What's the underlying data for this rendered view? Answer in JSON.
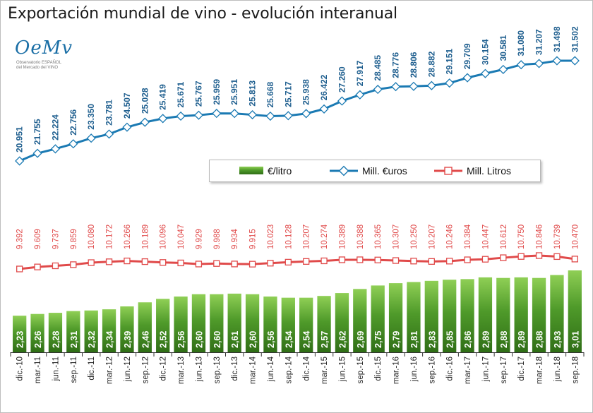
{
  "title": "Exportación mundial de vino - evolución interanual",
  "logo": {
    "mark": "OeMv",
    "line1": "Observatorio ESPAÑOL",
    "line2": "del Mercado del VINO"
  },
  "chart_data": {
    "type": "bar+line",
    "title": "Exportación mundial de vino - evolución interanual",
    "categories": [
      "dic.-10",
      "mar.-11",
      "jun.-11",
      "sep.-11",
      "dic.-11",
      "mar.-12",
      "jun.-12",
      "sep.-12",
      "dic.-12",
      "mar.-13",
      "jun.-13",
      "sep.-13",
      "dic.-13",
      "mar.-14",
      "jun.-14",
      "sep.-14",
      "dic.-14",
      "mar.-15",
      "jun.-15",
      "sep.-15",
      "dic.-15",
      "mar.-16",
      "jun.-16",
      "sep.-16",
      "dic.-16",
      "mar.-17",
      "jun.-17",
      "sep.-17",
      "dic.-17",
      "mar.-18",
      "jun.-18",
      "sep.-18"
    ],
    "series": [
      {
        "name": "€/litro",
        "type": "bar",
        "color": "#4f9a2a",
        "values": [
          2.23,
          2.26,
          2.28,
          2.31,
          2.32,
          2.34,
          2.39,
          2.46,
          2.52,
          2.56,
          2.6,
          2.6,
          2.61,
          2.6,
          2.56,
          2.54,
          2.54,
          2.57,
          2.62,
          2.69,
          2.75,
          2.79,
          2.81,
          2.83,
          2.85,
          2.86,
          2.89,
          2.88,
          2.89,
          2.88,
          2.93,
          3.01
        ],
        "labels": [
          "2,23",
          "2,26",
          "2,28",
          "2,31",
          "2,32",
          "2,34",
          "2,39",
          "2,46",
          "2,52",
          "2,56",
          "2,60",
          "2,60",
          "2,61",
          "2,60",
          "2,56",
          "2,54",
          "2,54",
          "2,57",
          "2,62",
          "2,69",
          "2,75",
          "2,79",
          "2,81",
          "2,83",
          "2,85",
          "2,86",
          "2,89",
          "2,88",
          "2,89",
          "2,88",
          "2,93",
          "3,01"
        ]
      },
      {
        "name": "Mill. €uros",
        "type": "line",
        "color": "#1b7ab3",
        "values": [
          20951,
          21755,
          22224,
          22756,
          23350,
          23781,
          24507,
          25028,
          25419,
          25671,
          25767,
          25959,
          25951,
          25813,
          25668,
          25717,
          25938,
          26422,
          27260,
          27917,
          28485,
          28776,
          28806,
          28882,
          29151,
          29709,
          30154,
          30581,
          31080,
          31207,
          31498,
          31502
        ],
        "labels": [
          "20.951",
          "21.755",
          "22.224",
          "22.756",
          "23.350",
          "23.781",
          "24.507",
          "25.028",
          "25.419",
          "25.671",
          "25.767",
          "25.959",
          "25.951",
          "25.813",
          "25.668",
          "25.717",
          "25.938",
          "26.422",
          "27.260",
          "27.917",
          "28.485",
          "28.776",
          "28.806",
          "28.882",
          "29.151",
          "29.709",
          "30.154",
          "30.581",
          "31.080",
          "31.207",
          "31.498",
          "31.502"
        ]
      },
      {
        "name": "Mill. Litros",
        "type": "line",
        "color": "#e04a4a",
        "values": [
          9392,
          9609,
          9737,
          9859,
          10080,
          10172,
          10266,
          10189,
          10096,
          10047,
          9929,
          9988,
          9934,
          9915,
          10023,
          10128,
          10207,
          10274,
          10389,
          10388,
          10365,
          10307,
          10250,
          10207,
          10246,
          10384,
          10447,
          10612,
          10750,
          10846,
          10739,
          10470
        ],
        "labels": [
          "9.392",
          "9.609",
          "9.737",
          "9.859",
          "10.080",
          "10.172",
          "10.266",
          "10.189",
          "10.096",
          "10.047",
          "9.929",
          "9.988",
          "9.934",
          "9.915",
          "10.023",
          "10.128",
          "10.207",
          "10.274",
          "10.389",
          "10.388",
          "10.365",
          "10.307",
          "10.250",
          "10.207",
          "10.246",
          "10.384",
          "10.447",
          "10.612",
          "10.750",
          "10.846",
          "10.739",
          "10.470"
        ]
      }
    ],
    "legend_position": "center",
    "grid": false
  }
}
